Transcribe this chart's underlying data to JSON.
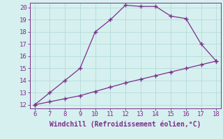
{
  "xlabel": "Windchill (Refroidissement éolien,°C)",
  "x_upper": [
    6,
    7,
    8,
    9,
    10,
    11,
    12,
    13,
    14,
    15,
    16,
    17,
    18
  ],
  "y_upper": [
    12,
    13,
    14,
    15,
    18,
    19,
    20.2,
    20.1,
    20.1,
    19.3,
    19.1,
    17.0,
    15.6
  ],
  "x_lower": [
    6,
    7,
    8,
    9,
    10,
    11,
    12,
    13,
    14,
    15,
    16,
    17,
    18
  ],
  "y_lower": [
    12,
    12.25,
    12.5,
    12.75,
    13.1,
    13.45,
    13.8,
    14.1,
    14.4,
    14.7,
    15.0,
    15.3,
    15.6
  ],
  "line_color": "#7b2d8b",
  "marker": "+",
  "bg_color": "#d6f0ef",
  "grid_color": "#b8dedd",
  "xlim": [
    6,
    18
  ],
  "ylim": [
    12,
    20
  ],
  "xticks": [
    6,
    7,
    8,
    9,
    10,
    11,
    12,
    13,
    14,
    15,
    16,
    17,
    18
  ],
  "yticks": [
    12,
    13,
    14,
    15,
    16,
    17,
    18,
    19,
    20
  ],
  "tick_fontsize": 6.5,
  "xlabel_fontsize": 7
}
